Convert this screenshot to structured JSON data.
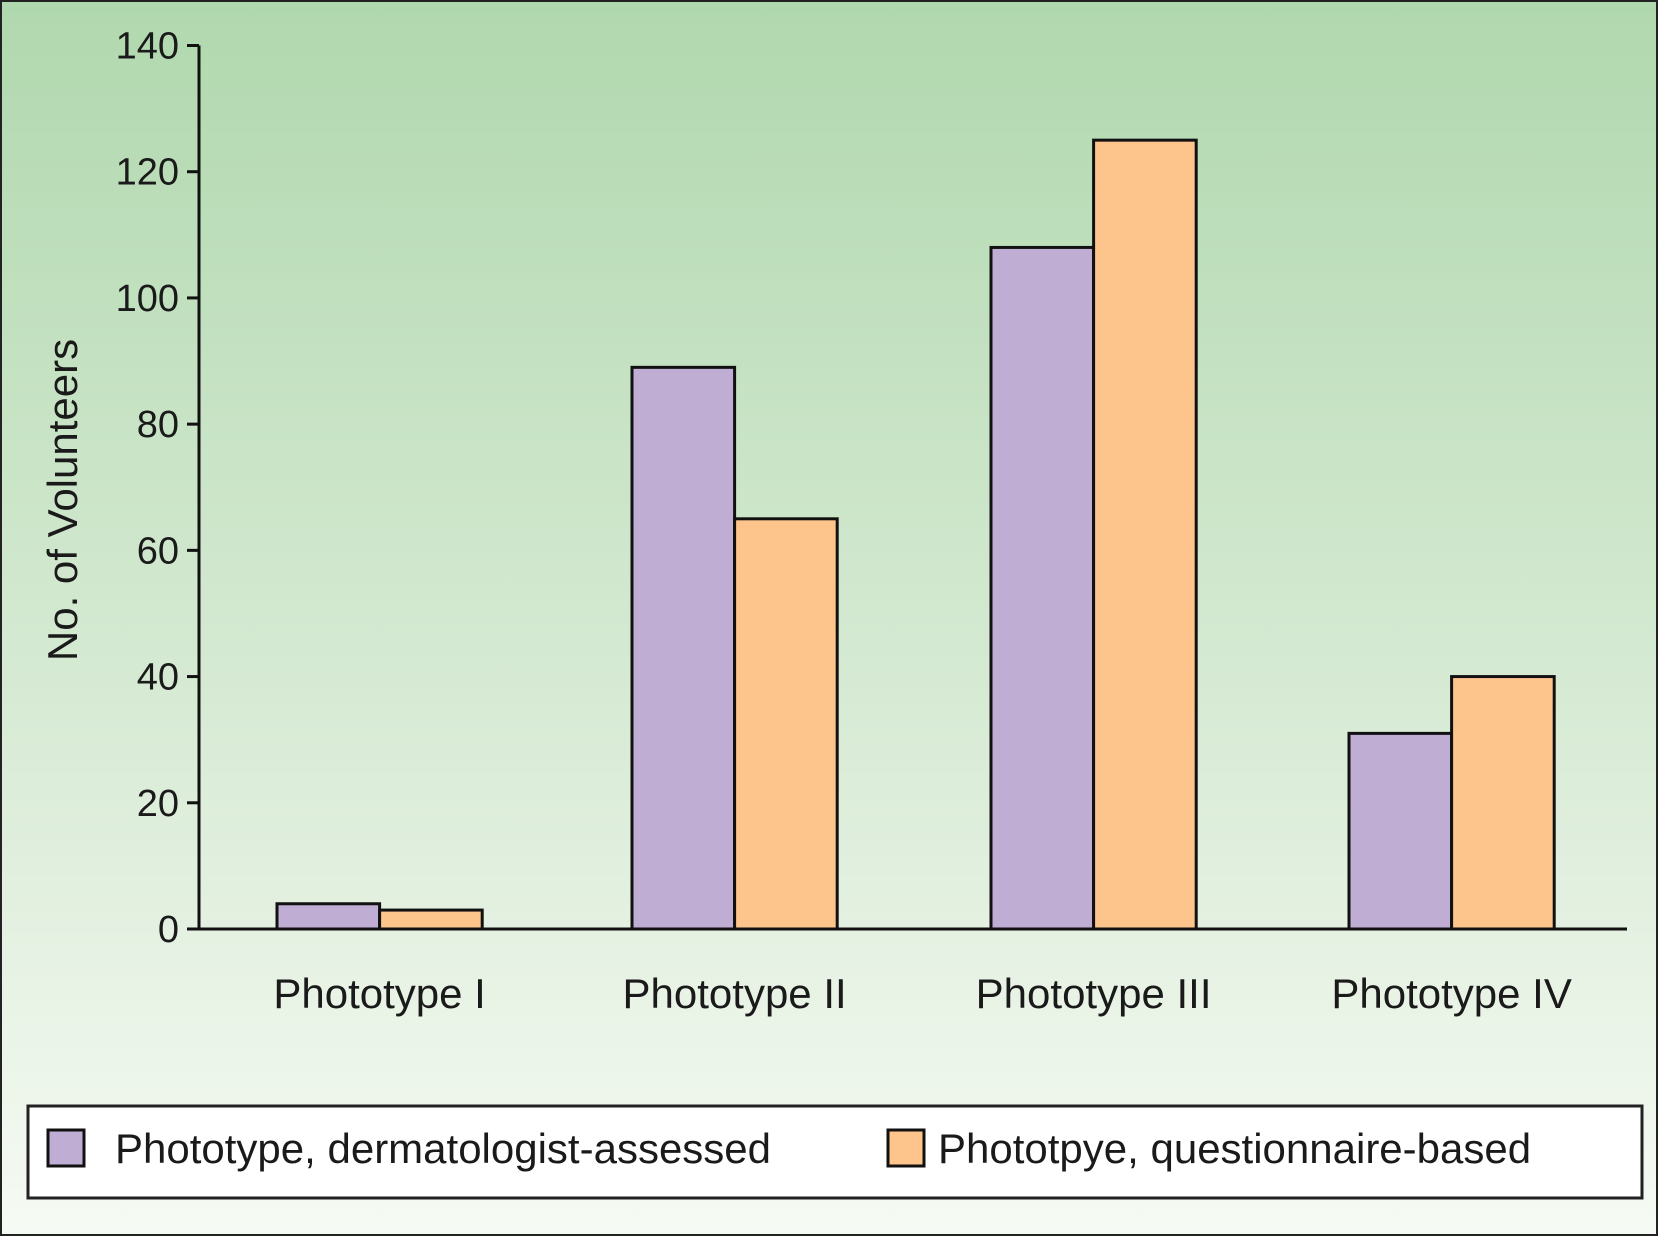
{
  "chart_data": {
    "type": "bar",
    "title": "",
    "xlabel": "",
    "ylabel": "No. of Volunteers",
    "ylim": [
      0,
      140
    ],
    "yticks": [
      0,
      20,
      40,
      60,
      80,
      100,
      120,
      140
    ],
    "categories": [
      "Phototype I",
      "Phototype II",
      "Phototype III",
      "Phototype IV"
    ],
    "series": [
      {
        "name": "Phototype, dermatologist-assessed",
        "color": "#bfadd4",
        "values": [
          4,
          89,
          108,
          31
        ]
      },
      {
        "name": "Phototpye, questionnaire-based",
        "color": "#fdc58c",
        "values": [
          3,
          65,
          125,
          40
        ]
      }
    ],
    "legend": "bottom",
    "grid": false
  }
}
